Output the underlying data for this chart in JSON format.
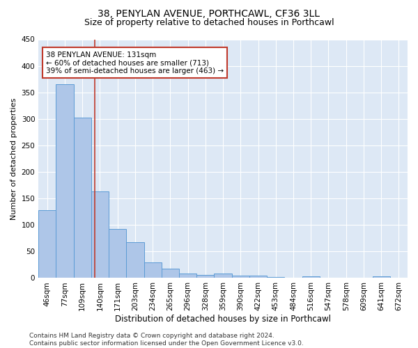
{
  "title1": "38, PENYLAN AVENUE, PORTHCAWL, CF36 3LL",
  "title2": "Size of property relative to detached houses in Porthcawl",
  "xlabel": "Distribution of detached houses by size in Porthcawl",
  "ylabel": "Number of detached properties",
  "categories": [
    "46sqm",
    "77sqm",
    "109sqm",
    "140sqm",
    "171sqm",
    "203sqm",
    "234sqm",
    "265sqm",
    "296sqm",
    "328sqm",
    "359sqm",
    "390sqm",
    "422sqm",
    "453sqm",
    "484sqm",
    "516sqm",
    "547sqm",
    "578sqm",
    "609sqm",
    "641sqm",
    "672sqm"
  ],
  "values": [
    128,
    365,
    303,
    163,
    93,
    67,
    30,
    18,
    8,
    6,
    8,
    4,
    4,
    2,
    1,
    3,
    0,
    0,
    0,
    3,
    0
  ],
  "bar_color": "#aec6e8",
  "bar_edge_color": "#5b9bd5",
  "vline_x_index": 2.72,
  "vline_color": "#c0392b",
  "annotation_line1": "38 PENYLAN AVENUE: 131sqm",
  "annotation_line2": "← 60% of detached houses are smaller (713)",
  "annotation_line3": "39% of semi-detached houses are larger (463) →",
  "annotation_box_color": "#ffffff",
  "annotation_box_edge": "#c0392b",
  "ylim": [
    0,
    450
  ],
  "yticks": [
    0,
    50,
    100,
    150,
    200,
    250,
    300,
    350,
    400,
    450
  ],
  "bg_color": "#dde8f5",
  "grid_color": "#ffffff",
  "footnote": "Contains HM Land Registry data © Crown copyright and database right 2024.\nContains public sector information licensed under the Open Government Licence v3.0.",
  "title1_fontsize": 10,
  "title2_fontsize": 9,
  "xlabel_fontsize": 8.5,
  "ylabel_fontsize": 8,
  "tick_fontsize": 7.5,
  "annot_fontsize": 7.5,
  "footnote_fontsize": 6.5
}
